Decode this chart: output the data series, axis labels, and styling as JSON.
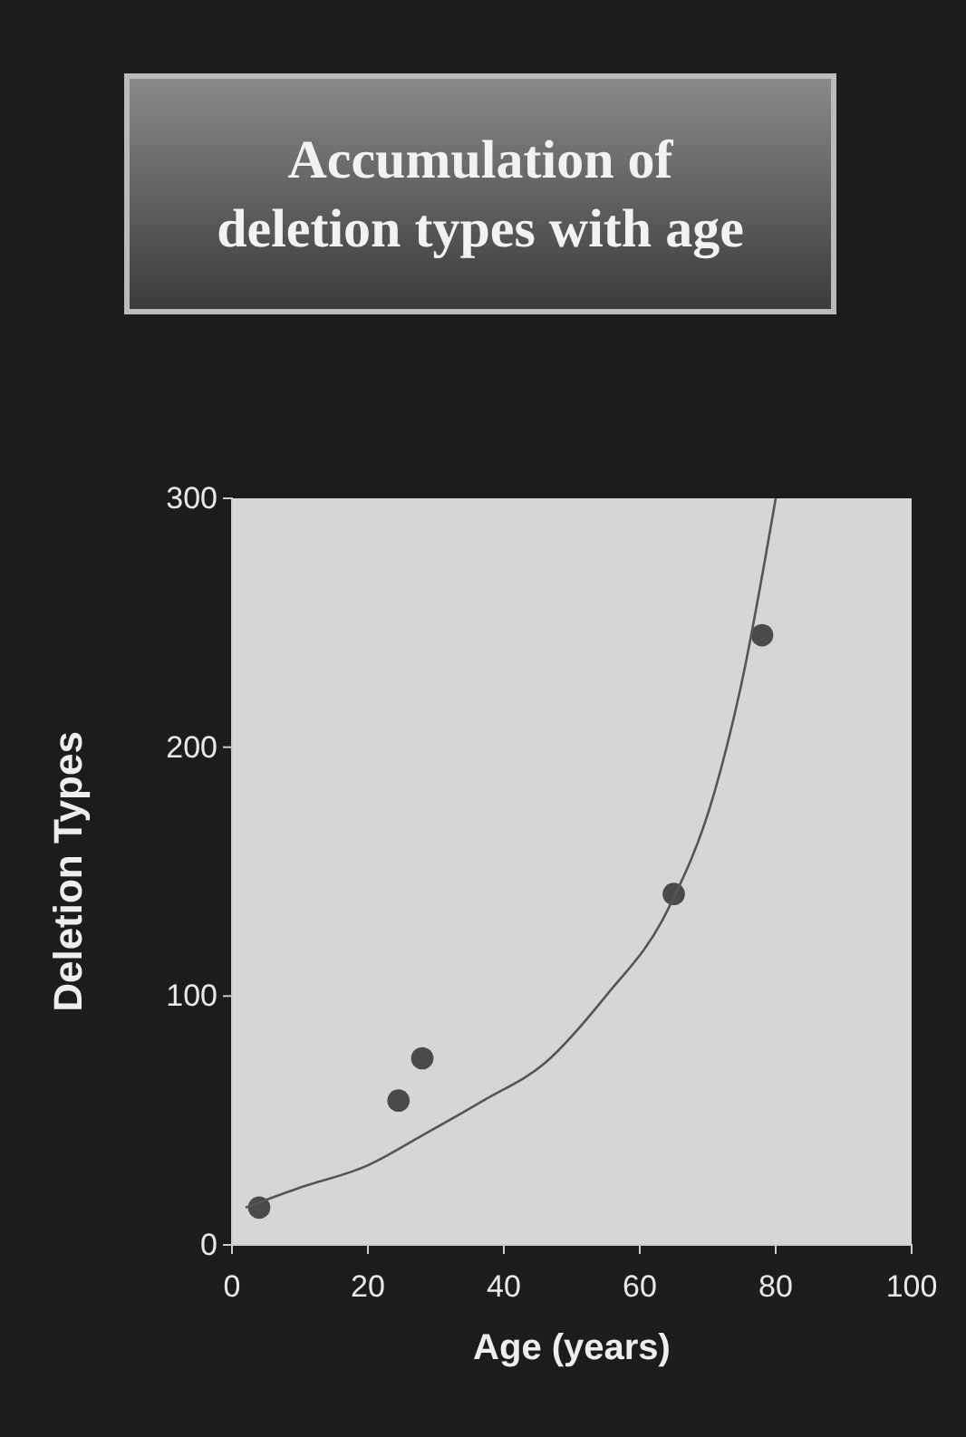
{
  "chart_data": {
    "type": "scatter",
    "title": "Accumulation of deletion types with age",
    "xlabel": "Age (years)",
    "ylabel": "Deletion Types",
    "xlim": [
      0,
      100
    ],
    "xticks": [
      0,
      20,
      40,
      60,
      80,
      100
    ],
    "ylim": [
      0,
      300
    ],
    "yticks": [
      0,
      100,
      200,
      300
    ],
    "grid": false,
    "marker": "circle",
    "series": [
      {
        "color": "#4a4a4a",
        "x": [
          4,
          24.5,
          28,
          65,
          78
        ],
        "values": [
          15,
          58,
          75,
          141,
          245
        ]
      },
      {
        "type": "line",
        "color": "#555555",
        "line_style": "solid",
        "marker": "none",
        "x": [
          2,
          10,
          20,
          28,
          37,
          46,
          55,
          64,
          71,
          75,
          80
        ],
        "values": [
          15,
          23,
          32,
          44,
          58,
          73,
          100,
          134,
          182,
          226,
          300
        ]
      }
    ]
  }
}
